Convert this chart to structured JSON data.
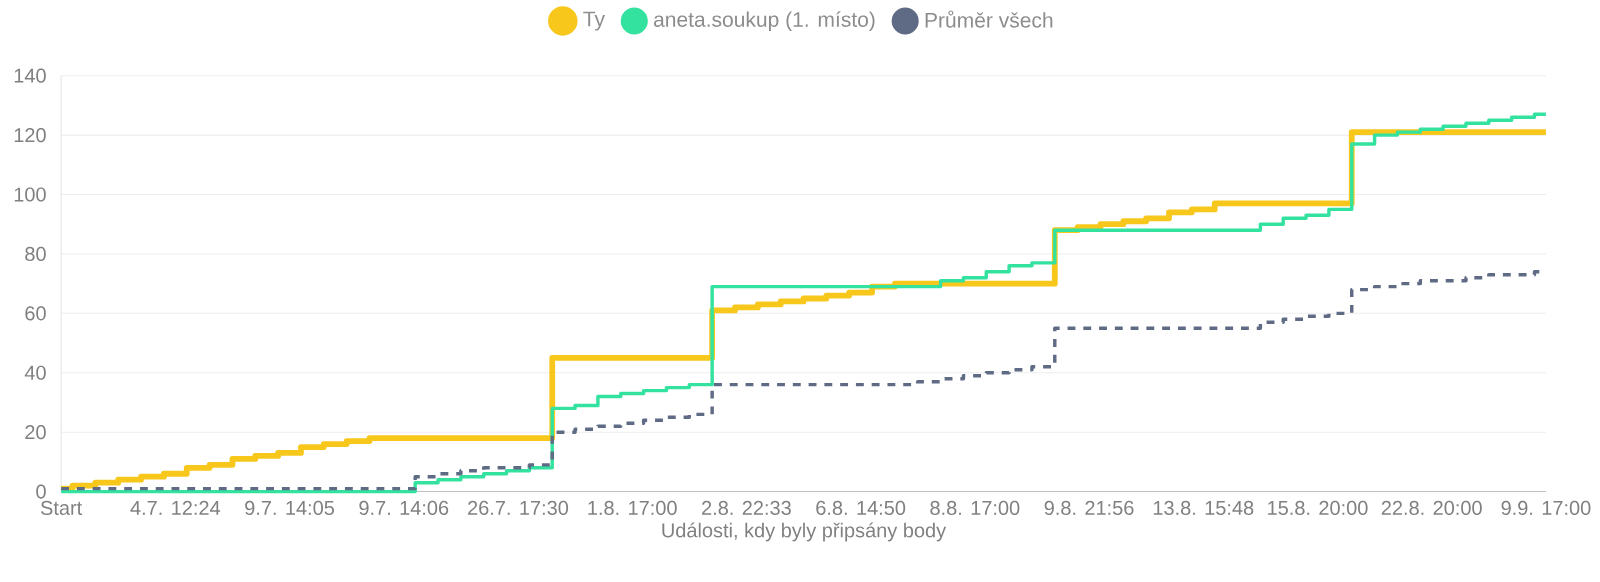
{
  "chart_data": {
    "type": "step",
    "xlabel": "Události, kdy byly připsány body",
    "categories": [
      "Start",
      null,
      null,
      null,
      null,
      "4.7. 12:24",
      null,
      null,
      null,
      null,
      "9.7. 14:05",
      null,
      null,
      null,
      null,
      "9.7. 14:06",
      null,
      null,
      null,
      null,
      "26.7. 17:30",
      null,
      null,
      null,
      null,
      "1.8. 17:00",
      null,
      null,
      null,
      null,
      "2.8. 22:33",
      null,
      null,
      null,
      null,
      "6.8. 14:50",
      null,
      null,
      null,
      null,
      "8.8. 17:00",
      null,
      null,
      null,
      null,
      "9.8. 21:56",
      null,
      null,
      null,
      null,
      "13.8. 15:48",
      null,
      null,
      null,
      null,
      "15.8. 20:00",
      null,
      null,
      null,
      null,
      "22.8. 20:00",
      null,
      null,
      null,
      null,
      "9.9. 17:00"
    ],
    "series": [
      {
        "name": "Ty",
        "color": "#f7c71c",
        "line_style": "solid",
        "values": [
          1,
          2,
          3,
          4,
          5,
          6,
          8,
          9,
          11,
          12,
          13,
          15,
          16,
          17,
          18,
          18,
          18,
          18,
          18,
          18,
          18,
          18,
          45,
          45,
          45,
          45,
          45,
          45,
          45,
          61,
          62,
          63,
          64,
          65,
          66,
          67,
          69,
          70,
          70,
          70,
          70,
          70,
          70,
          70,
          88,
          89,
          90,
          91,
          92,
          94,
          95,
          97,
          97,
          97,
          97,
          97,
          97,
          121,
          121,
          121,
          121,
          121,
          121,
          121,
          121,
          121
        ]
      },
      {
        "name": "aneta.soukup (1. místo)",
        "color": "#34e2a0",
        "line_style": "solid",
        "values": [
          0,
          0,
          0,
          0,
          0,
          0,
          0,
          0,
          0,
          0,
          0,
          0,
          0,
          0,
          0,
          0,
          3,
          4,
          5,
          6,
          7,
          8,
          28,
          29,
          32,
          33,
          34,
          35,
          36,
          69,
          69,
          69,
          69,
          69,
          69,
          69,
          69,
          69,
          69,
          71,
          72,
          74,
          76,
          77,
          88,
          88,
          88,
          88,
          88,
          88,
          88,
          88,
          88,
          90,
          92,
          93,
          95,
          117,
          120,
          121,
          122,
          123,
          124,
          125,
          126,
          127
        ]
      },
      {
        "name": "Průměr všech",
        "color": "#5f6b85",
        "line_style": "dashed",
        "values": [
          1,
          1,
          1,
          1,
          1,
          1,
          1,
          1,
          1,
          1,
          1,
          1,
          1,
          1,
          1,
          1,
          5,
          6,
          7,
          8,
          8,
          9,
          20,
          21,
          22,
          23,
          24,
          25,
          26,
          36,
          36,
          36,
          36,
          36,
          36,
          36,
          36,
          36,
          37,
          38,
          39,
          40,
          41,
          42,
          55,
          55,
          55,
          55,
          55,
          55,
          55,
          55,
          55,
          57,
          58,
          59,
          60,
          68,
          69,
          70,
          71,
          71,
          72,
          73,
          73,
          74
        ]
      }
    ],
    "ylim": [
      0,
      140
    ],
    "yticks": [
      0,
      20,
      40,
      60,
      80,
      100,
      120,
      140
    ],
    "grid": "y",
    "legend": "top",
    "marker": "none"
  }
}
